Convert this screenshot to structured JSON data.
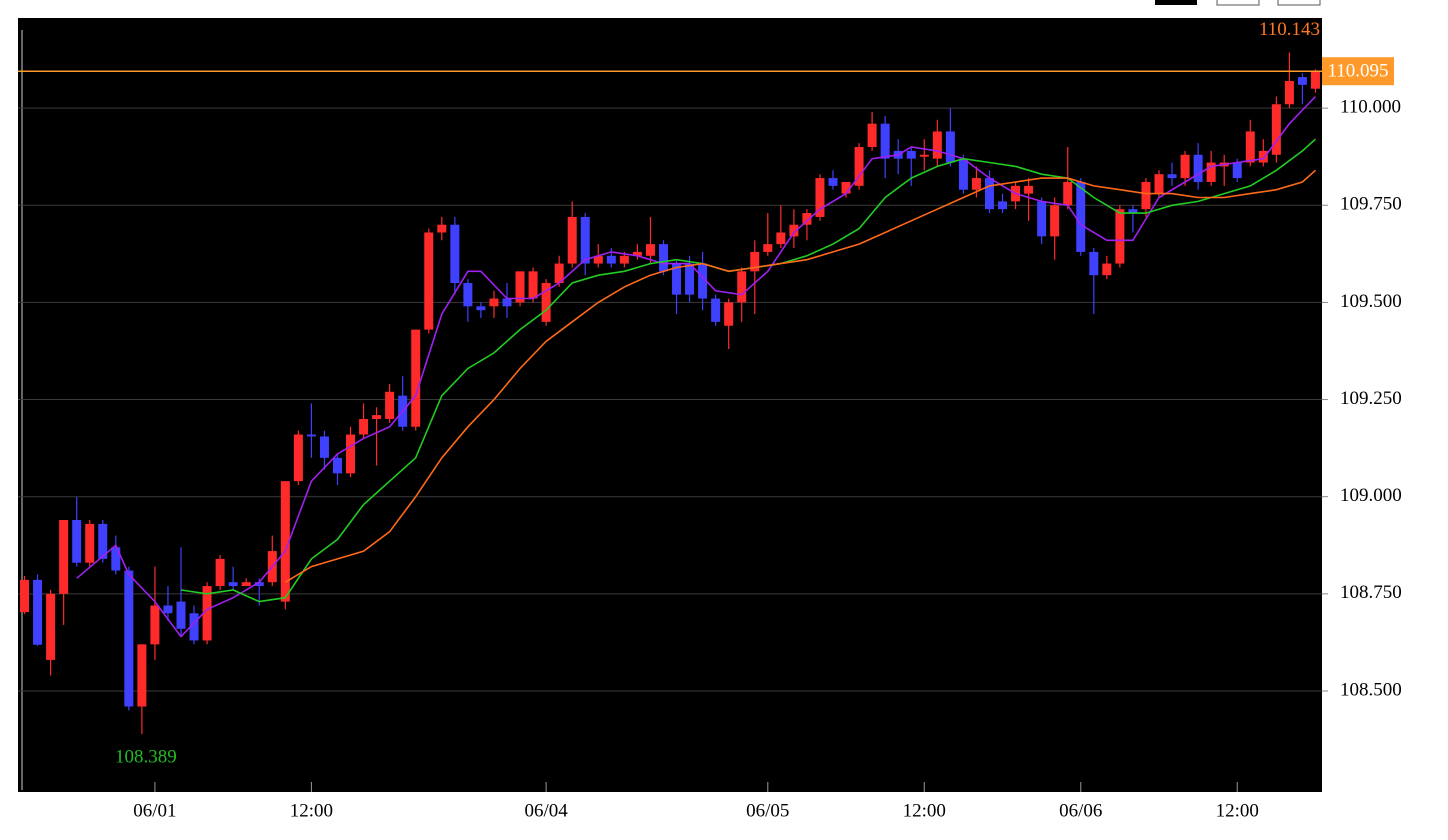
{
  "chart_data": {
    "type": "candlestick",
    "categories": [
      null,
      null,
      null,
      null,
      null,
      null,
      null,
      null,
      null,
      null,
      "06/01",
      null,
      null,
      null,
      null,
      null,
      null,
      null,
      null,
      null,
      null,
      null,
      "12:00",
      null,
      null,
      null,
      null,
      null,
      null,
      null,
      null,
      null,
      null,
      null,
      null,
      null,
      null,
      null,
      null,
      null,
      "06/04",
      null,
      null,
      null,
      null,
      null,
      null,
      null,
      null,
      null,
      null,
      null,
      null,
      null,
      null,
      null,
      null,
      "06/05",
      null,
      null,
      null,
      null,
      null,
      null,
      null,
      null,
      null,
      null,
      null,
      "12:00",
      null,
      null,
      null,
      null,
      null,
      null,
      null,
      null,
      null,
      null,
      null,
      "06/06",
      null,
      null,
      null,
      null,
      null,
      null,
      null,
      null,
      null,
      null,
      null,
      "12:00",
      null,
      null,
      null,
      null,
      null,
      null
    ],
    "open": [
      108.703,
      108.786,
      108.58,
      108.75,
      108.94,
      108.83,
      108.93,
      108.87,
      108.81,
      108.46,
      108.62,
      108.72,
      108.73,
      108.7,
      108.63,
      108.77,
      108.78,
      108.77,
      108.78,
      108.78,
      108.73,
      109.04,
      109.16,
      109.155,
      109.1,
      109.06,
      109.16,
      109.2,
      109.2,
      109.26,
      109.18,
      109.43,
      109.68,
      109.7,
      109.55,
      109.49,
      109.49,
      109.51,
      109.5,
      109.51,
      109.45,
      109.55,
      109.6,
      109.72,
      109.6,
      109.62,
      109.6,
      109.62,
      109.62,
      109.65,
      109.6,
      109.6,
      109.6,
      109.51,
      109.44,
      109.5,
      109.58,
      109.63,
      109.65,
      109.67,
      109.7,
      109.72,
      109.82,
      109.78,
      109.8,
      109.9,
      109.96,
      109.89,
      109.89,
      109.875,
      109.87,
      109.94,
      109.87,
      109.79,
      109.82,
      109.76,
      109.76,
      109.78,
      109.76,
      109.67,
      109.75,
      109.81,
      109.63,
      109.57,
      109.6,
      109.74,
      109.74,
      109.78,
      109.83,
      109.82,
      109.88,
      109.81,
      109.85,
      109.86,
      109.86,
      109.86,
      109.88,
      110.01,
      110.08,
      110.05
    ],
    "high": [
      108.796,
      108.8,
      108.76,
      108.94,
      109.0,
      108.94,
      108.94,
      108.9,
      108.82,
      108.62,
      108.82,
      108.77,
      108.87,
      108.72,
      108.78,
      108.85,
      108.82,
      108.79,
      108.79,
      108.9,
      109.04,
      109.17,
      109.24,
      109.17,
      109.11,
      109.18,
      109.24,
      109.23,
      109.29,
      109.31,
      109.43,
      109.69,
      109.72,
      109.72,
      109.56,
      109.5,
      109.53,
      109.55,
      109.58,
      109.59,
      109.56,
      109.62,
      109.76,
      109.73,
      109.65,
      109.64,
      109.63,
      109.65,
      109.72,
      109.66,
      109.61,
      109.62,
      109.63,
      109.52,
      109.51,
      109.59,
      109.66,
      109.73,
      109.75,
      109.74,
      109.74,
      109.83,
      109.84,
      109.81,
      109.91,
      109.99,
      109.98,
      109.92,
      109.9,
      109.92,
      109.97,
      110.0,
      109.88,
      109.85,
      109.84,
      109.78,
      109.81,
      109.82,
      109.77,
      109.77,
      109.9,
      109.82,
      109.64,
      109.62,
      109.75,
      109.75,
      109.82,
      109.84,
      109.86,
      109.89,
      109.91,
      109.89,
      109.88,
      109.87,
      109.97,
      109.92,
      110.03,
      110.143,
      110.09,
      110.1
    ],
    "low": [
      108.698,
      108.616,
      108.54,
      108.67,
      108.82,
      108.82,
      108.83,
      108.8,
      108.45,
      108.389,
      108.58,
      108.68,
      108.64,
      108.62,
      108.62,
      108.76,
      108.76,
      108.77,
      108.72,
      108.77,
      108.71,
      109.03,
      109.1,
      109.07,
      109.03,
      109.05,
      109.15,
      109.08,
      109.19,
      109.17,
      109.17,
      109.42,
      109.66,
      109.52,
      109.45,
      109.46,
      109.46,
      109.46,
      109.49,
      109.5,
      109.44,
      109.54,
      109.59,
      109.57,
      109.59,
      109.59,
      109.59,
      109.61,
      109.6,
      109.57,
      109.47,
      109.5,
      109.48,
      109.44,
      109.38,
      109.45,
      109.47,
      109.62,
      109.64,
      109.64,
      109.66,
      109.71,
      109.79,
      109.77,
      109.79,
      109.89,
      109.82,
      109.83,
      109.8,
      109.84,
      109.85,
      109.85,
      109.78,
      109.77,
      109.73,
      109.73,
      109.74,
      109.71,
      109.65,
      109.61,
      109.74,
      109.62,
      109.47,
      109.56,
      109.59,
      109.68,
      109.72,
      109.77,
      109.8,
      109.8,
      109.79,
      109.8,
      109.8,
      109.81,
      109.85,
      109.85,
      109.86,
      110.0,
      110.01,
      110.04
    ],
    "close": [
      108.786,
      108.619,
      108.75,
      108.94,
      108.83,
      108.93,
      108.84,
      108.81,
      108.46,
      108.62,
      108.72,
      108.7,
      108.66,
      108.63,
      108.77,
      108.84,
      108.77,
      108.78,
      108.77,
      108.86,
      109.04,
      109.16,
      109.155,
      109.1,
      109.06,
      109.16,
      109.2,
      109.21,
      109.27,
      109.18,
      109.43,
      109.68,
      109.7,
      109.55,
      109.49,
      109.48,
      109.51,
      109.49,
      109.58,
      109.58,
      109.55,
      109.6,
      109.72,
      109.6,
      109.62,
      109.6,
      109.62,
      109.63,
      109.65,
      109.58,
      109.52,
      109.52,
      109.51,
      109.45,
      109.5,
      109.58,
      109.63,
      109.65,
      109.68,
      109.7,
      109.73,
      109.82,
      109.8,
      109.81,
      109.9,
      109.96,
      109.87,
      109.87,
      109.87,
      109.88,
      109.94,
      109.86,
      109.79,
      109.82,
      109.74,
      109.74,
      109.8,
      109.8,
      109.67,
      109.75,
      109.81,
      109.63,
      109.57,
      109.6,
      109.74,
      109.73,
      109.81,
      109.83,
      109.82,
      109.88,
      109.81,
      109.86,
      109.86,
      109.82,
      109.94,
      109.89,
      110.01,
      110.07,
      110.06,
      110.095
    ],
    "up_color": "#ff2a2a",
    "down_color": "#4040ff",
    "lines": [
      {
        "color": "#a020f0",
        "x": [
          4,
          7,
          8,
          10,
          12,
          14,
          16,
          18,
          20,
          22,
          24,
          26,
          28,
          30,
          32,
          34,
          35,
          37,
          39,
          41,
          43,
          45,
          47,
          49,
          51,
          53,
          55,
          57,
          59,
          61,
          63,
          65,
          67,
          68,
          70,
          72,
          74,
          76,
          78,
          80,
          81,
          83,
          84,
          85,
          87,
          89,
          91,
          93,
          95,
          97,
          99
        ],
        "values": [
          108.79,
          108.875,
          108.8,
          108.73,
          108.64,
          108.71,
          108.74,
          108.78,
          108.86,
          109.04,
          109.11,
          109.15,
          109.18,
          109.26,
          109.47,
          109.58,
          109.58,
          109.51,
          109.51,
          109.55,
          109.61,
          109.63,
          109.62,
          109.6,
          109.6,
          109.53,
          109.52,
          109.58,
          109.68,
          109.74,
          109.78,
          109.87,
          109.88,
          109.9,
          109.89,
          109.87,
          109.82,
          109.78,
          109.76,
          109.75,
          109.7,
          109.66,
          109.66,
          109.66,
          109.77,
          109.81,
          109.85,
          109.86,
          109.87,
          109.96,
          110.03
        ]
      },
      {
        "color": "#22cc22",
        "x": [
          12,
          14,
          16,
          18,
          20,
          22,
          24,
          26,
          28,
          30,
          32,
          34,
          36,
          38,
          40,
          42,
          44,
          46,
          48,
          50,
          52,
          54,
          56,
          58,
          60,
          62,
          64,
          66,
          68,
          70,
          72,
          74,
          76,
          78,
          80,
          82,
          84,
          86,
          88,
          90,
          92,
          94,
          96,
          98,
          99
        ],
        "values": [
          108.76,
          108.75,
          108.76,
          108.73,
          108.74,
          108.84,
          108.89,
          108.98,
          109.04,
          109.1,
          109.26,
          109.33,
          109.37,
          109.43,
          109.48,
          109.55,
          109.57,
          109.58,
          109.6,
          109.61,
          109.6,
          109.58,
          109.59,
          109.6,
          109.62,
          109.65,
          109.69,
          109.77,
          109.82,
          109.85,
          109.87,
          109.86,
          109.85,
          109.83,
          109.82,
          109.77,
          109.73,
          109.73,
          109.75,
          109.76,
          109.78,
          109.8,
          109.84,
          109.89,
          109.92
        ]
      },
      {
        "color": "#ff6a1a",
        "x": [
          20,
          22,
          24,
          26,
          28,
          30,
          32,
          34,
          36,
          38,
          40,
          42,
          44,
          46,
          48,
          50,
          52,
          54,
          56,
          58,
          60,
          62,
          64,
          66,
          68,
          70,
          72,
          74,
          76,
          78,
          80,
          82,
          84,
          86,
          88,
          90,
          92,
          94,
          96,
          98,
          99
        ],
        "values": [
          108.78,
          108.82,
          108.84,
          108.86,
          108.91,
          109.0,
          109.1,
          109.18,
          109.25,
          109.33,
          109.4,
          109.45,
          109.5,
          109.54,
          109.57,
          109.59,
          109.6,
          109.58,
          109.59,
          109.6,
          109.61,
          109.63,
          109.65,
          109.68,
          109.71,
          109.74,
          109.77,
          109.8,
          109.81,
          109.82,
          109.82,
          109.8,
          109.79,
          109.78,
          109.78,
          109.77,
          109.77,
          109.78,
          109.79,
          109.81,
          109.84
        ]
      }
    ],
    "last_price": 110.095,
    "last_price_color": "#ff9a2a",
    "high_label": 110.143,
    "high_label_color": "#ff7a20",
    "low_label": 108.389,
    "low_label_color": "#22bb22",
    "ylim": [
      108.24,
      110.232
    ],
    "yticks": [
      {
        "value": 108.5,
        "label": "108.500"
      },
      {
        "value": 108.75,
        "label": "108.750"
      },
      {
        "value": 109,
        "label": "109.000"
      },
      {
        "value": 109.25,
        "label": "109.250"
      },
      {
        "value": 109.5,
        "label": "109.500"
      },
      {
        "value": 109.75,
        "label": "109.750"
      },
      {
        "value": 110,
        "label": "110.000"
      }
    ],
    "grid": true
  }
}
